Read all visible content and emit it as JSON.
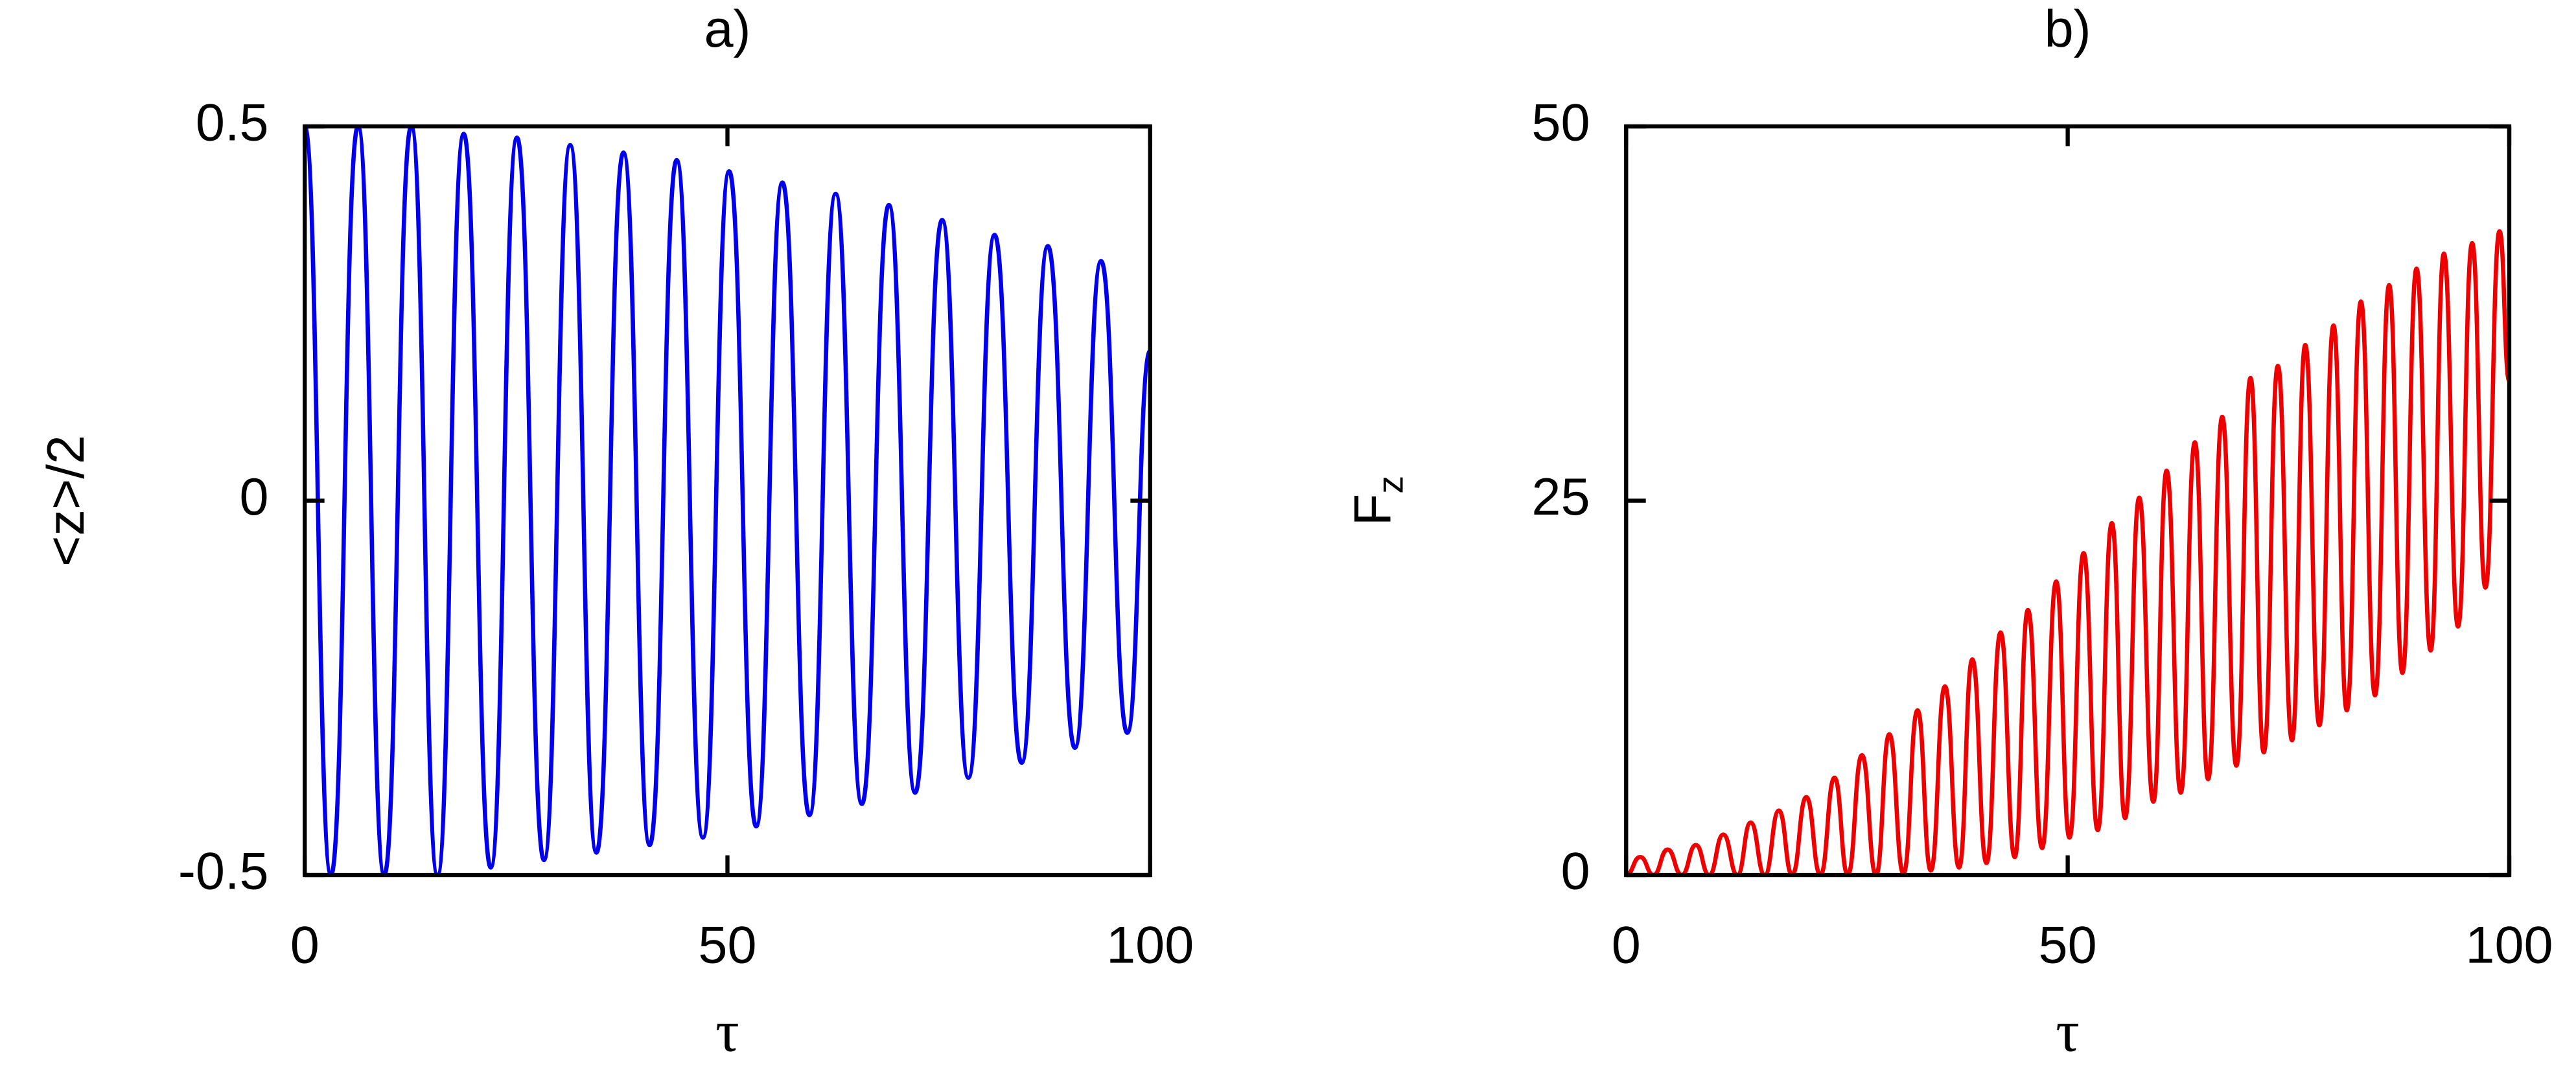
{
  "chart_data": [
    {
      "type": "line",
      "title": "a)",
      "xlabel": "τ",
      "ylabel": "<z>/2",
      "color": "#0000ee",
      "xlim": [
        0,
        100
      ],
      "xticks": [
        0,
        50,
        100
      ],
      "ylim": [
        -0.5,
        0.5
      ],
      "yticks": [
        -0.5,
        0,
        0.5
      ],
      "x": [
        0,
        3.1,
        6.3,
        9.4,
        12.6,
        15.7,
        18.8,
        22.0,
        25.1,
        28.3,
        31.4,
        34.5,
        37.7,
        40.8,
        44.0,
        47.1,
        50.2,
        53.4,
        56.5,
        59.7,
        62.8,
        65.9,
        69.1,
        72.2,
        75.4,
        78.5,
        81.6,
        84.8,
        87.9,
        91.1,
        94.2,
        97.3,
        100
      ],
      "values": [
        0.5,
        -0.5,
        0.5,
        -0.5,
        0.5,
        -0.5,
        0.49,
        -0.49,
        0.485,
        -0.48,
        0.475,
        -0.47,
        0.465,
        -0.46,
        0.455,
        -0.45,
        0.44,
        -0.435,
        0.425,
        -0.42,
        0.41,
        -0.405,
        0.395,
        -0.39,
        0.375,
        -0.37,
        0.355,
        -0.35,
        0.34,
        -0.33,
        0.32,
        -0.31,
        0.2
      ]
    },
    {
      "type": "line",
      "title": "b)",
      "xlabel": "τ",
      "ylabel": "F",
      "ylabel_subscript": "z",
      "color": "#ee0000",
      "xlim": [
        0,
        100
      ],
      "xticks": [
        0,
        50,
        100
      ],
      "ylim": [
        0,
        50
      ],
      "yticks": [
        0,
        25,
        50
      ],
      "x": [
        0,
        1.6,
        3.1,
        4.7,
        6.3,
        7.9,
        9.4,
        11.0,
        12.6,
        14.1,
        15.7,
        17.3,
        18.8,
        20.4,
        22.0,
        23.6,
        25.1,
        26.7,
        28.3,
        29.8,
        31.4,
        33.0,
        34.5,
        36.1,
        37.7,
        39.2,
        40.8,
        42.4,
        44.0,
        45.5,
        47.1,
        48.7,
        50.2,
        51.8,
        53.4,
        55.0,
        56.5,
        58.1,
        59.7,
        61.2,
        62.8,
        64.4,
        65.9,
        67.5,
        69.1,
        70.7,
        72.2,
        73.8,
        75.4,
        76.9,
        78.5,
        80.1,
        81.6,
        83.2,
        84.8,
        86.4,
        87.9,
        89.5,
        91.1,
        92.6,
        94.2,
        95.8,
        97.3,
        98.9,
        100
      ],
      "values": [
        0,
        1.2,
        0,
        1.7,
        0,
        2.0,
        0,
        2.7,
        0,
        3.5,
        0,
        4.3,
        0,
        5.2,
        0,
        6.5,
        0,
        8.0,
        0,
        9.4,
        0.1,
        11.0,
        0.3,
        12.6,
        0.5,
        14.4,
        0.8,
        16.2,
        1.2,
        17.7,
        1.8,
        19.6,
        2.5,
        21.5,
        3.0,
        23.5,
        3.8,
        25.2,
        4.9,
        27.0,
        5.5,
        28.9,
        6.4,
        30.6,
        7.3,
        33.2,
        8.2,
        34.0,
        9.0,
        35.4,
        10.0,
        36.7,
        11.0,
        38.3,
        12.0,
        39.4,
        13.5,
        40.5,
        15.0,
        41.5,
        16.6,
        42.2,
        19.2,
        43.0,
        33
      ]
    }
  ]
}
